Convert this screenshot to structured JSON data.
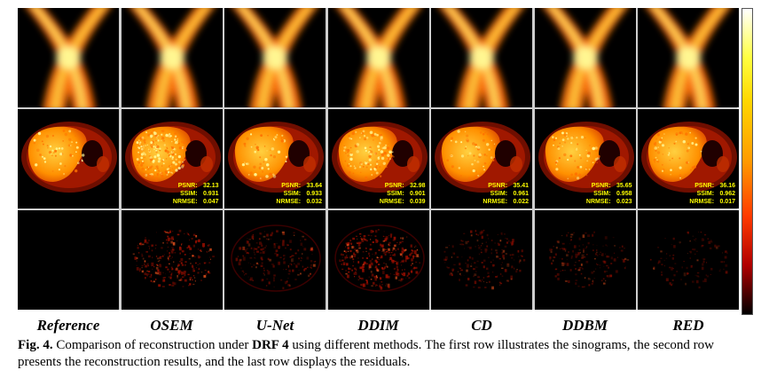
{
  "columns": [
    {
      "label": "Reference",
      "metrics": null
    },
    {
      "label": "OSEM",
      "metrics": {
        "psnr": "32.13",
        "ssim": "0.931",
        "nrmse": "0.047"
      }
    },
    {
      "label": "U-Net",
      "metrics": {
        "psnr": "33.64",
        "ssim": "0.933",
        "nrmse": "0.032"
      }
    },
    {
      "label": "DDIM",
      "metrics": {
        "psnr": "32.98",
        "ssim": "0.901",
        "nrmse": "0.039"
      }
    },
    {
      "label": "CD",
      "metrics": {
        "psnr": "35.41",
        "ssim": "0.961",
        "nrmse": "0.022"
      }
    },
    {
      "label": "DDBM",
      "metrics": {
        "psnr": "35.65",
        "ssim": "0.958",
        "nrmse": "0.023"
      }
    },
    {
      "label": "RED",
      "metrics": {
        "psnr": "36.16",
        "ssim": "0.962",
        "nrmse": "0.017"
      }
    }
  ],
  "metric_labels": {
    "psnr": "PSNR:",
    "ssim": "SSIM:",
    "nrmse": "NRMSE:"
  },
  "caption": {
    "fig": "Fig. 4.",
    "part1": " Comparison of reconstruction under ",
    "bold": "DRF 4",
    "part2": " using different methods. The first row illustrates the sinograms, the second row presents the reconstruction results, and the last row displays the residuals."
  },
  "colormap": {
    "colors": [
      "#000000",
      "#b00000",
      "#ff3a00",
      "#ff9a00",
      "#ffd700",
      "#ffffff"
    ]
  }
}
